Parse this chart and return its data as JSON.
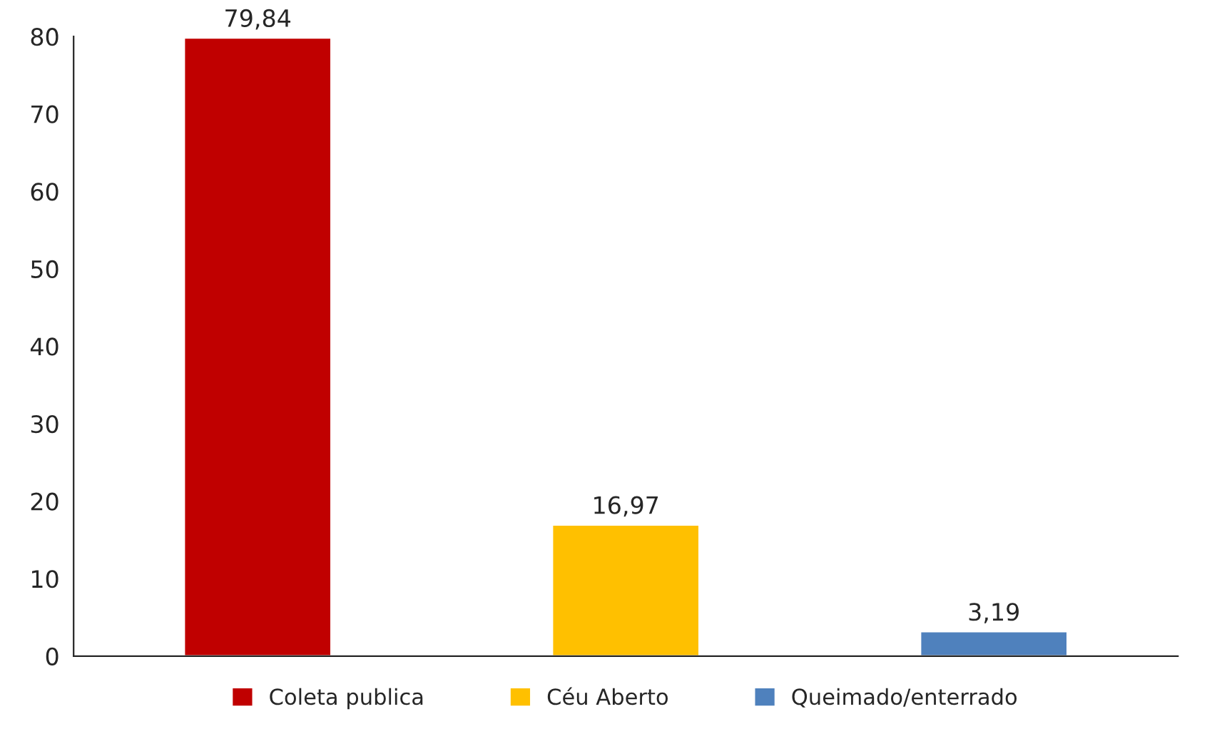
{
  "chart_data": {
    "type": "bar",
    "categories": [
      null,
      null,
      null
    ],
    "series": [
      {
        "name": "Coleta publica",
        "color": "#c00000",
        "values": [
          79.84,
          null,
          null
        ],
        "value_labels": [
          "79,84",
          null,
          null
        ]
      },
      {
        "name": "Céu Aberto",
        "color": "#ffc000",
        "values": [
          null,
          16.97,
          null
        ],
        "value_labels": [
          null,
          "16,97",
          null
        ]
      },
      {
        "name": "Queimado/enterrado",
        "color": "#4f81bd",
        "values": [
          null,
          null,
          3.19
        ],
        "value_labels": [
          null,
          null,
          "3,19"
        ]
      }
    ],
    "ylim": [
      0,
      80
    ],
    "yticks": [
      0,
      10,
      20,
      30,
      40,
      50,
      60,
      70,
      80
    ],
    "tick_labels": "y",
    "grid": false,
    "legend": "bottom"
  }
}
